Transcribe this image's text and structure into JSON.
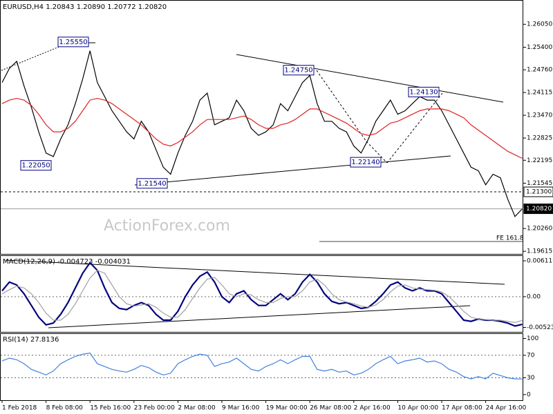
{
  "chart_data": [
    {
      "type": "line",
      "title": "EURUSD,H4  1.20843 1.20890 1.20772 1.20820",
      "categories": [
        "1 Feb 2018",
        null,
        null,
        null,
        null,
        null,
        "8 Feb 08:00",
        null,
        null,
        null,
        null,
        null,
        "15 Feb 16:00",
        null,
        null,
        null,
        null,
        null,
        "23 Feb 00:00",
        null,
        null,
        null,
        null,
        null,
        "2 Mar 08:00",
        null,
        null,
        null,
        null,
        null,
        "9 Mar 16:00",
        null,
        null,
        null,
        null,
        null,
        "19 Mar 00:00",
        null,
        null,
        null,
        null,
        null,
        "26 Mar 08:00",
        null,
        null,
        null,
        null,
        null,
        "2 Apr 16:00",
        null,
        null,
        null,
        null,
        null,
        "10 Apr 00:00",
        null,
        null,
        null,
        null,
        null,
        "17 Apr 08:00",
        null,
        null,
        null,
        null,
        null,
        "24 Apr 16:00",
        null,
        null,
        null,
        null,
        null
      ],
      "series": [
        {
          "name": "EURUSD",
          "color": "#000000",
          "values": [
            1.244,
            1.248,
            1.25,
            1.243,
            1.237,
            1.23,
            1.224,
            1.223,
            1.228,
            1.232,
            1.238,
            1.245,
            1.253,
            1.244,
            1.24,
            1.236,
            1.233,
            1.23,
            1.228,
            1.233,
            1.23,
            1.225,
            1.22,
            1.218,
            1.224,
            1.229,
            1.233,
            1.239,
            1.241,
            1.232,
            1.233,
            1.234,
            1.239,
            1.236,
            1.231,
            1.229,
            1.23,
            1.232,
            1.238,
            1.236,
            1.24,
            1.244,
            1.246,
            1.238,
            1.233,
            1.233,
            1.231,
            1.23,
            1.226,
            1.224,
            1.228,
            1.233,
            1.236,
            1.239,
            1.235,
            1.236,
            1.238,
            1.24,
            1.239,
            1.239,
            1.236,
            1.232,
            1.228,
            1.224,
            1.22,
            1.219,
            1.215,
            1.218,
            1.217,
            1.211,
            1.206,
            1.2082
          ]
        },
        {
          "name": "MA",
          "color": "#e02020",
          "values": [
            1.238,
            1.239,
            1.2395,
            1.239,
            1.2375,
            1.235,
            1.232,
            1.23,
            1.23,
            1.231,
            1.233,
            1.236,
            1.239,
            1.2395,
            1.239,
            1.238,
            1.2365,
            1.235,
            1.2335,
            1.232,
            1.23,
            1.228,
            1.2265,
            1.226,
            1.227,
            1.2285,
            1.23,
            1.232,
            1.2335,
            1.2335,
            1.2335,
            1.2335,
            1.234,
            1.2345,
            1.2335,
            1.232,
            1.231,
            1.231,
            1.232,
            1.2325,
            1.2335,
            1.235,
            1.2365,
            1.2365,
            1.2355,
            1.2345,
            1.2335,
            1.2325,
            1.231,
            1.2295,
            1.229,
            1.2295,
            1.231,
            1.2325,
            1.233,
            1.234,
            1.235,
            1.236,
            1.2365,
            1.2365,
            1.2365,
            1.236,
            1.235,
            1.234,
            1.232,
            1.2305,
            1.229,
            1.2275,
            1.226,
            1.2245,
            1.2235,
            1.2225
          ]
        }
      ],
      "ylim": [
        1.1954,
        1.267
      ],
      "yticks": [
        {
          "value": 1.2605,
          "label": "1.26050"
        },
        {
          "value": 1.254,
          "label": "1.25400"
        },
        {
          "value": 1.2476,
          "label": "1.24760"
        },
        {
          "value": 1.24115,
          "label": "1.24115"
        },
        {
          "value": 1.2347,
          "label": "1.23470"
        },
        {
          "value": 1.22825,
          "label": "1.22825"
        },
        {
          "value": 1.22195,
          "label": "1.22195"
        },
        {
          "value": 1.21545,
          "label": "1.21545"
        },
        {
          "value": 1.2026,
          "label": "1.20260"
        },
        {
          "value": 1.19615,
          "label": "1.19615"
        }
      ],
      "grid": false,
      "annotations": [
        {
          "value": 1.2555,
          "label": "1.25550"
        },
        {
          "value": 1.2205,
          "label": "1.22050"
        },
        {
          "value": 1.2154,
          "label": "1.21540"
        },
        {
          "value": 1.2475,
          "label": "1.24750"
        },
        {
          "value": 1.2214,
          "label": "1.22140"
        },
        {
          "value": 1.2413,
          "label": "1.24130"
        }
      ],
      "levels": [
        {
          "value": 1.213,
          "label": "1.21300"
        },
        {
          "value": 1.2082,
          "label": "1.20820"
        }
      ],
      "fe_label": "FE 161.8",
      "watermark": "ActionForex.com"
    },
    {
      "type": "line",
      "title": "MACD(12,26,9) -0.004723 -0.004031",
      "series": [
        {
          "name": "MACD",
          "color": "#00007f",
          "values": [
            0.001,
            0.0025,
            0.002,
            0.0005,
            -0.0015,
            -0.0035,
            -0.0048,
            -0.0045,
            -0.003,
            -0.001,
            0.0015,
            0.004,
            0.0058,
            0.0045,
            0.0015,
            -0.001,
            -0.002,
            -0.0022,
            -0.0015,
            -0.001,
            -0.0015,
            -0.003,
            -0.004,
            -0.004,
            -0.0025,
            0.0,
            0.002,
            0.0035,
            0.0042,
            0.0025,
            0.0,
            -0.001,
            0.0005,
            0.001,
            -0.0005,
            -0.0015,
            -0.0015,
            -0.0005,
            0.0005,
            -0.0005,
            0.0005,
            0.0025,
            0.0038,
            0.0025,
            0.0005,
            -0.0008,
            -0.0012,
            -0.001,
            -0.0015,
            -0.002,
            -0.0018,
            -0.0008,
            0.0005,
            0.002,
            0.0025,
            0.0015,
            0.001,
            0.0015,
            0.001,
            0.001,
            0.0005,
            -0.001,
            -0.0025,
            -0.004,
            -0.0042,
            -0.0038,
            -0.004,
            -0.004,
            -0.0042,
            -0.0045,
            -0.005,
            -0.004723
          ]
        },
        {
          "name": "Signal",
          "color": "#a0a0a0",
          "values": [
            0.0005,
            0.0012,
            0.0018,
            0.0015,
            0.0005,
            -0.001,
            -0.0028,
            -0.004,
            -0.004,
            -0.003,
            -0.0012,
            0.001,
            0.0032,
            0.0045,
            0.004,
            0.002,
            0.0,
            -0.0012,
            -0.0016,
            -0.0014,
            -0.0012,
            -0.0018,
            -0.0028,
            -0.0035,
            -0.0035,
            -0.0022,
            -0.0003,
            0.0015,
            0.003,
            0.0033,
            0.002,
            0.0005,
            0.0,
            0.0005,
            0.0003,
            -0.0005,
            -0.001,
            -0.001,
            -0.0003,
            0.0,
            0.0,
            0.001,
            0.0025,
            0.003,
            0.002,
            0.0005,
            -0.0005,
            -0.0009,
            -0.0012,
            -0.0016,
            -0.0018,
            -0.0014,
            -0.0005,
            0.0008,
            0.0018,
            0.002,
            0.0015,
            0.0013,
            0.0012,
            0.0011,
            0.0008,
            0.0,
            -0.0012,
            -0.0025,
            -0.0035,
            -0.0038,
            -0.0039,
            -0.004,
            -0.004,
            -0.0042,
            -0.0044,
            -0.004031
          ]
        }
      ],
      "ylim": [
        -0.006001,
        0.006943
      ],
      "yticks": [
        0.006119,
        {
          "value": 0,
          "label": "0.00"
        },
        -0.005239
      ],
      "grid": true
    },
    {
      "type": "line",
      "title": "RSI(14) 27.8136",
      "series": [
        {
          "name": "RSI",
          "color": "#3f7fdf",
          "values": [
            60,
            65,
            62,
            55,
            45,
            40,
            35,
            42,
            55,
            62,
            68,
            72,
            74,
            55,
            50,
            45,
            42,
            40,
            45,
            52,
            48,
            40,
            35,
            38,
            55,
            62,
            68,
            72,
            70,
            50,
            55,
            58,
            65,
            55,
            45,
            42,
            50,
            55,
            62,
            55,
            62,
            68,
            68,
            45,
            42,
            45,
            40,
            42,
            35,
            38,
            45,
            55,
            62,
            68,
            55,
            60,
            62,
            65,
            58,
            60,
            55,
            45,
            40,
            32,
            28,
            32,
            28,
            38,
            34,
            30,
            28,
            27.8136
          ]
        }
      ],
      "ylim": [
        -10,
        108
      ],
      "yticks": [
        100,
        70,
        30,
        0
      ],
      "grid": true
    }
  ]
}
